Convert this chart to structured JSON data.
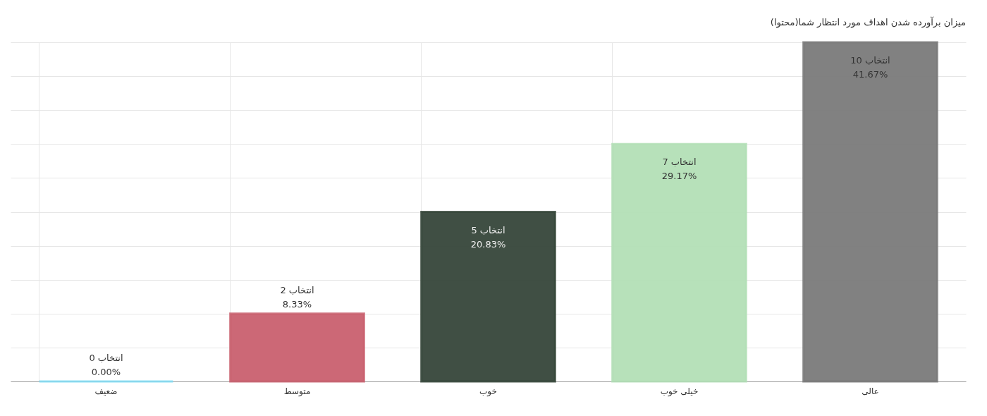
{
  "chart_data": {
    "type": "bar",
    "title": "میزان برآورده شدن اهداف مورد انتظار شما(محتوا)",
    "categories": [
      "ضعیف",
      "متوسط",
      "خوب",
      "خیلی خوب",
      "عالی"
    ],
    "values": [
      0,
      2,
      5,
      7,
      10
    ],
    "colors": [
      "#7fdcf5",
      "#c9606f",
      "#36463a",
      "#b3dfb6",
      "#7a7a7a"
    ],
    "value_labels": [
      "0 انتخاب\n0.00%",
      "2 انتخاب\n8.33%",
      "5 انتخاب\n20.83%",
      "7 انتخاب\n29.17%",
      "10 انتخاب\n41.67%"
    ],
    "ylim": [
      0,
      10
    ],
    "tick_labels": "x",
    "grid": true
  }
}
